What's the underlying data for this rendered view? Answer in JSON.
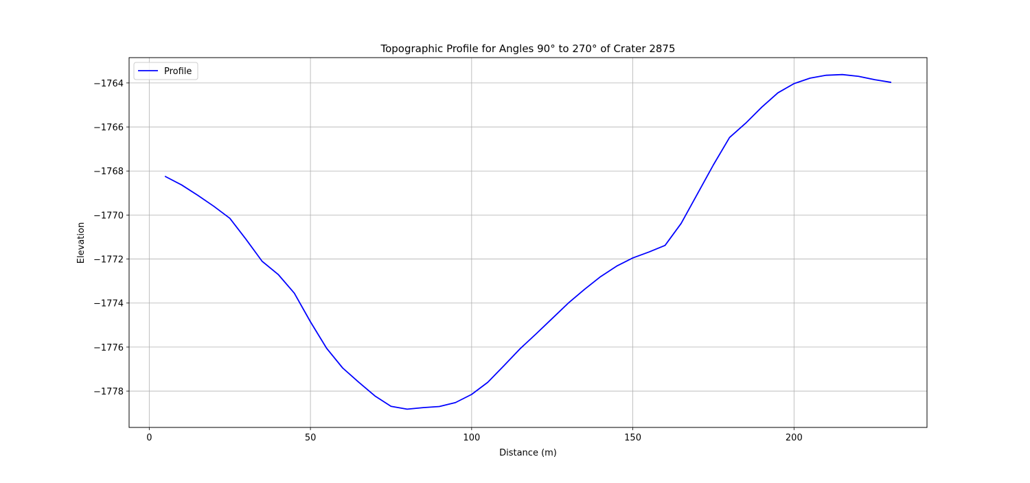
{
  "chart_data": {
    "type": "line",
    "title": "Topographic Profile for Angles 90° to 270° of Crater 2875",
    "xlabel": "Distance (m)",
    "ylabel": "Elevation",
    "xlim": [
      -6.25,
      241.25
    ],
    "ylim": [
      -1779.65,
      -1762.85
    ],
    "xticks": [
      0,
      50,
      100,
      150,
      200
    ],
    "xtick_labels": [
      "0",
      "50",
      "100",
      "150",
      "200"
    ],
    "yticks": [
      -1764,
      -1766,
      -1768,
      -1770,
      -1772,
      -1774,
      -1776,
      -1778
    ],
    "ytick_labels": [
      "−1764",
      "−1766",
      "−1768",
      "−1770",
      "−1772",
      "−1774",
      "−1776",
      "−1778"
    ],
    "grid": true,
    "legend": {
      "position": "upper-left",
      "entries": [
        "Profile"
      ]
    },
    "series": [
      {
        "name": "Profile",
        "color": "#0000ff",
        "x": [
          5,
          10,
          15,
          20,
          25,
          30,
          35,
          40,
          45,
          50,
          55,
          60,
          65,
          70,
          75,
          80,
          85,
          90,
          95,
          100,
          105,
          110,
          115,
          120,
          125,
          130,
          135,
          140,
          145,
          150,
          155,
          160,
          165,
          170,
          175,
          180,
          185,
          190,
          195,
          200,
          205,
          210,
          215,
          220,
          225,
          230
        ],
        "y": [
          -1768.25,
          -1768.63,
          -1769.1,
          -1769.6,
          -1770.15,
          -1771.1,
          -1772.1,
          -1772.7,
          -1773.55,
          -1774.85,
          -1776.05,
          -1776.95,
          -1777.6,
          -1778.22,
          -1778.69,
          -1778.82,
          -1778.75,
          -1778.7,
          -1778.52,
          -1778.15,
          -1777.6,
          -1776.85,
          -1776.08,
          -1775.4,
          -1774.7,
          -1774.0,
          -1773.38,
          -1772.8,
          -1772.32,
          -1771.95,
          -1771.68,
          -1771.38,
          -1770.38,
          -1769.05,
          -1767.72,
          -1766.48,
          -1765.83,
          -1765.1,
          -1764.45,
          -1764.03,
          -1763.78,
          -1763.65,
          -1763.62,
          -1763.7,
          -1763.85,
          -1763.97
        ]
      }
    ]
  }
}
